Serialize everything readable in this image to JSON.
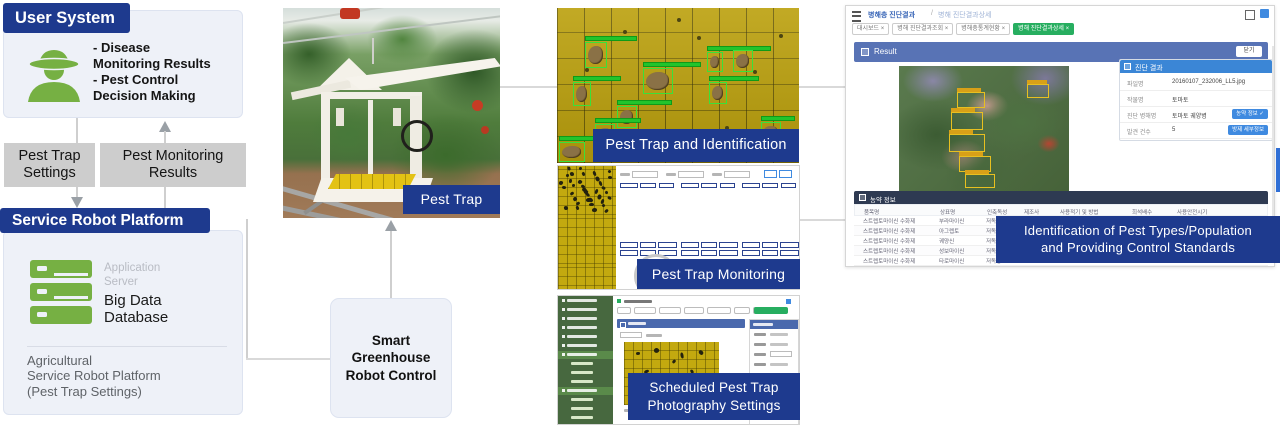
{
  "colors": {
    "navy": "#1e3a8e",
    "icon_green": "#76b043",
    "gray_label": "#cdcdcd",
    "panel": "#eef1f8",
    "sidebar_green": "#47683f",
    "trap_yellow": "#bba00c",
    "detect_green": "#3ae13a",
    "ui_blue": "#5873b5",
    "button_blue": "#3f8ae0",
    "table_navy": "#2e3a52",
    "tab_green": "#27ae60"
  },
  "user_system": {
    "title": "User System",
    "bullet1": "- Disease\n  Monitoring Results",
    "bullet2": "- Pest Control\n  Decision Making"
  },
  "flow_labels": {
    "pest_trap_settings": "Pest Trap\nSettings",
    "pest_monitoring_results": "Pest Monitoring\nResults"
  },
  "service_platform": {
    "title": "Service Robot Platform",
    "application_server": "Application\nServer",
    "big_data_database": "Big Data\nDatabase",
    "caption": "Agricultural\nService Robot Platform\n(Pest Trap Settings)"
  },
  "smart_control": {
    "label": "Smart\nGreenhouse\nRobot Control"
  },
  "pest_trap_photo": {
    "label": "Pest Trap"
  },
  "captions": {
    "identification": "Pest Trap and Identification",
    "monitoring": "Pest Trap Monitoring",
    "schedule": "Scheduled Pest Trap\nPhotography Settings",
    "standards": "Identification of Pest Types/Population\nand Providing Control Standards"
  },
  "diagnosis_app": {
    "breadcrumb_main": "병해충 진단결과",
    "breadcrumb_sep": "/",
    "breadcrumb_sub": "병해 진단결과상세",
    "tabs": [
      {
        "label": "대시보드 ×",
        "active": false
      },
      {
        "label": "병해 진단결과조회 ×",
        "active": false
      },
      {
        "label": "병해충통계현황 ×",
        "active": false
      },
      {
        "label": "병해 진단결과상세 ×",
        "active": true
      }
    ],
    "result_bar": "Result",
    "close_button": "닫기",
    "diagnosis_panel": {
      "title": "진단 결과",
      "rows": [
        {
          "label": "파일명",
          "value": "20160107_232006_LL5.jpg",
          "button": ""
        },
        {
          "label": "작물명",
          "value": "토마토",
          "button": ""
        },
        {
          "label": "진단 병해명",
          "value": "토마토 궤양병",
          "button": "농약 정보 ✓"
        },
        {
          "label": "발견 건수",
          "value": "5",
          "button": "방제 세부정보"
        }
      ]
    },
    "pesticide_table": {
      "title": "농약 정보",
      "columns": [
        "품목명",
        "상표명",
        "인축독성",
        "제조사",
        "사용적기 및 방법",
        "희석배수",
        "사용안전시기"
      ],
      "rows": [
        [
          "스트렙토마이신 수화제",
          "부라마이신",
          "저독성"
        ],
        [
          "스트렙토마이신 수화제",
          "아그렙토",
          "저독성"
        ],
        [
          "스트렙토마이신 수화제",
          "궤양신",
          "저독성"
        ],
        [
          "스트렙토마이신 수화제",
          "성보마이신",
          "저독성"
        ],
        [
          "스트렙토마이신 수화제",
          "타로마이신",
          "저독성"
        ]
      ]
    }
  }
}
